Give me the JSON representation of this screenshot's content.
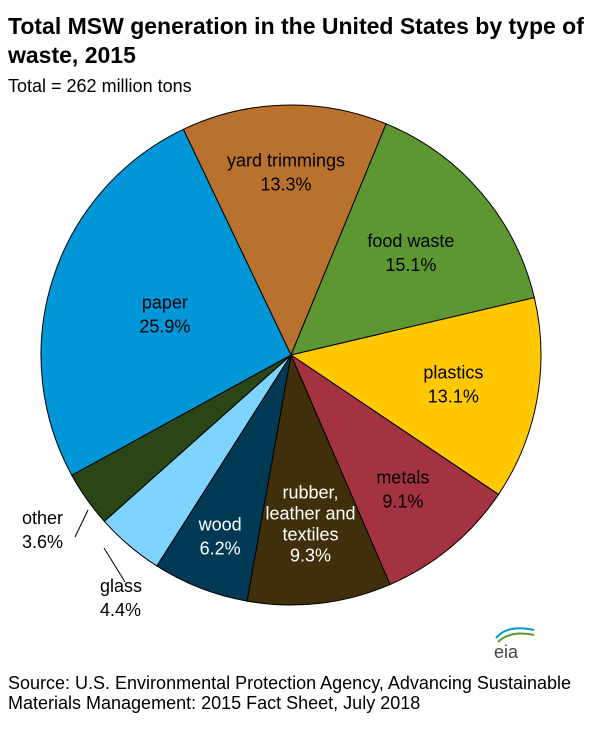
{
  "chart_data": {
    "type": "pie",
    "title": "Total MSW generation in the United States by type of waste, 2015",
    "subtitle": "Total = 262 million tons",
    "unit": "percent",
    "slices": [
      {
        "label": "yard trimmings",
        "value": 13.3,
        "pct_label": "13.3%",
        "color": "#B9722D",
        "text_color": "#000000"
      },
      {
        "label": "food waste",
        "value": 15.1,
        "pct_label": "15.1%",
        "color": "#5D9732",
        "text_color": "#000000"
      },
      {
        "label": "plastics",
        "value": 13.1,
        "pct_label": "13.1%",
        "color": "#FFC800",
        "text_color": "#000000"
      },
      {
        "label": "metals",
        "value": 9.1,
        "pct_label": "9.1%",
        "color": "#A33340",
        "text_color": "#000000"
      },
      {
        "label": "rubber, leather and textiles",
        "value": 9.3,
        "pct_label": "9.3%",
        "color": "#3F2F0A",
        "text_color": "#ffffff"
      },
      {
        "label": "wood",
        "value": 6.2,
        "pct_label": "6.2%",
        "color": "#003953",
        "text_color": "#ffffff"
      },
      {
        "label": "glass",
        "value": 4.4,
        "pct_label": "4.4%",
        "color": "#7FD4FF",
        "text_color": "#000000"
      },
      {
        "label": "other",
        "value": 3.6,
        "pct_label": "3.6%",
        "color": "#2A4516",
        "text_color": "#000000"
      },
      {
        "label": "paper",
        "value": 25.9,
        "pct_label": "25.9%",
        "color": "#0096D7",
        "text_color": "#000000"
      }
    ]
  },
  "source": "Source: U.S. Environmental Protection Agency, Advancing Sustainable Materials Management: 2015 Fact Sheet, July 2018",
  "logo": {
    "text": "eia",
    "color": "#0096D7"
  }
}
